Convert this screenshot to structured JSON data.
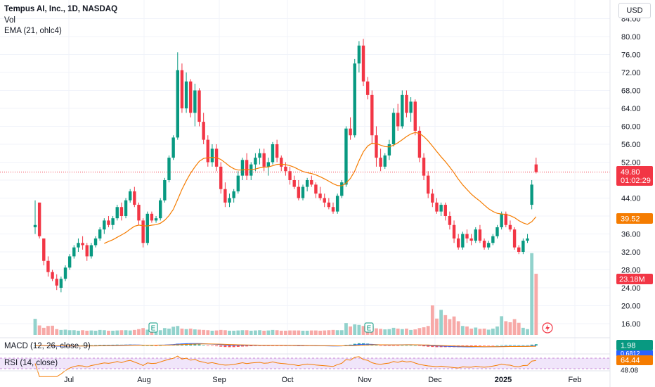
{
  "header": {
    "title": "Tempus AI, Inc., 1D, NASDAQ",
    "vol_label": "Vol",
    "ema_label": "EMA (21, ohlc4)",
    "currency": "USD"
  },
  "indicators": {
    "macd_label": "MACD (12, 26, close, 9)",
    "rsi_label": "RSI (14, close)",
    "macd_badges": [
      "1.98",
      "0.6812"
    ],
    "rsi_badges": [
      "64.44",
      "48.08"
    ]
  },
  "price_badges": {
    "last": "49.80",
    "countdown": "01:02:29",
    "ema": "39.52",
    "volume": "23.18M"
  },
  "colors": {
    "up": "#089981",
    "down": "#f23645",
    "up_vol": "#92d2cc",
    "down_vol": "#f7a9a7",
    "ema": "#f57c00",
    "macd_line": "#2962ff",
    "rsi_line": "#f57c00",
    "rsi_band": "#f0e5fa"
  },
  "chart_data": {
    "type": "candlestick",
    "title": "Tempus AI, Inc., 1D, NASDAQ",
    "x_ticks": [
      "Jul",
      "Aug",
      "Sep",
      "Oct",
      "Nov",
      "Dec",
      "2025",
      "Feb"
    ],
    "y_ticks": [
      "16.00",
      "20.00",
      "24.00",
      "28.00",
      "32.00",
      "36.00",
      "40.00",
      "44.00",
      "48.00",
      "52.00",
      "56.00",
      "60.00",
      "64.00",
      "68.00",
      "72.00",
      "76.00",
      "80.00",
      "84.00"
    ],
    "ylim": [
      15,
      85
    ],
    "earnings_markers": [
      "E",
      "E"
    ],
    "series": [
      {
        "name": "Price",
        "ohlc": [
          [
            37.5,
            43.5,
            36.0,
            38.0
          ],
          [
            43.0,
            43.0,
            35.0,
            35.5
          ],
          [
            35.0,
            35.0,
            29.0,
            30.0
          ],
          [
            30.0,
            31.0,
            26.5,
            27.5
          ],
          [
            27.5,
            28.0,
            25.5,
            26.0
          ],
          [
            26.0,
            27.0,
            23.5,
            24.5
          ],
          [
            24.0,
            26.5,
            23.0,
            26.0
          ],
          [
            26.0,
            29.0,
            25.5,
            28.5
          ],
          [
            28.5,
            31.5,
            28.0,
            31.0
          ],
          [
            31.0,
            33.5,
            30.5,
            33.0
          ],
          [
            33.0,
            35.0,
            32.0,
            34.0
          ],
          [
            34.0,
            35.5,
            32.5,
            33.5
          ],
          [
            33.5,
            34.0,
            30.0,
            31.0
          ],
          [
            31.0,
            34.0,
            30.5,
            33.5
          ],
          [
            33.5,
            35.5,
            33.0,
            35.0
          ],
          [
            35.0,
            37.5,
            34.5,
            37.0
          ],
          [
            37.0,
            39.5,
            36.0,
            39.0
          ],
          [
            39.0,
            40.0,
            37.5,
            38.0
          ],
          [
            38.0,
            40.0,
            37.0,
            39.5
          ],
          [
            39.5,
            42.5,
            39.0,
            42.0
          ],
          [
            42.0,
            43.0,
            39.0,
            40.0
          ],
          [
            40.0,
            44.0,
            39.5,
            43.5
          ],
          [
            43.5,
            46.0,
            43.0,
            45.5
          ],
          [
            45.5,
            46.5,
            42.0,
            42.5
          ],
          [
            42.5,
            43.0,
            38.0,
            39.0
          ],
          [
            39.0,
            39.5,
            33.0,
            34.0
          ],
          [
            34.0,
            41.0,
            33.5,
            40.5
          ],
          [
            40.5,
            41.0,
            38.5,
            39.0
          ],
          [
            39.0,
            40.0,
            38.5,
            39.5
          ],
          [
            39.5,
            44.0,
            39.0,
            43.5
          ],
          [
            43.5,
            48.5,
            43.0,
            48.0
          ],
          [
            48.0,
            53.5,
            47.5,
            53.0
          ],
          [
            53.0,
            58.0,
            52.5,
            57.5
          ],
          [
            57.5,
            76.5,
            57.0,
            72.5
          ],
          [
            72.5,
            74.0,
            63.0,
            64.0
          ],
          [
            64.0,
            72.0,
            63.0,
            70.0
          ],
          [
            70.0,
            70.5,
            62.0,
            63.0
          ],
          [
            63.0,
            69.5,
            60.0,
            68.0
          ],
          [
            68.0,
            68.5,
            60.0,
            61.0
          ],
          [
            61.0,
            63.0,
            56.0,
            57.0
          ],
          [
            57.0,
            58.0,
            51.0,
            52.0
          ],
          [
            52.0,
            56.0,
            51.0,
            55.0
          ],
          [
            55.0,
            56.0,
            50.0,
            51.0
          ],
          [
            51.0,
            52.0,
            45.0,
            46.0
          ],
          [
            46.0,
            47.5,
            42.0,
            43.0
          ],
          [
            43.0,
            45.0,
            42.0,
            44.0
          ],
          [
            44.0,
            46.0,
            43.0,
            45.5
          ],
          [
            45.5,
            50.0,
            45.0,
            49.0
          ],
          [
            49.0,
            53.0,
            48.0,
            52.5
          ],
          [
            52.5,
            54.0,
            48.0,
            49.0
          ],
          [
            49.0,
            52.0,
            48.0,
            51.5
          ],
          [
            51.5,
            54.0,
            50.0,
            53.0
          ],
          [
            53.0,
            55.0,
            51.5,
            54.0
          ],
          [
            54.0,
            55.0,
            50.0,
            51.0
          ],
          [
            51.0,
            53.0,
            49.0,
            52.0
          ],
          [
            52.0,
            56.5,
            51.5,
            56.0
          ],
          [
            56.0,
            57.0,
            52.0,
            53.0
          ],
          [
            53.0,
            53.5,
            50.0,
            51.0
          ],
          [
            51.0,
            52.0,
            49.0,
            50.0
          ],
          [
            50.0,
            51.0,
            47.0,
            48.0
          ],
          [
            48.0,
            49.0,
            46.0,
            46.5
          ],
          [
            46.5,
            48.0,
            43.5,
            44.0
          ],
          [
            44.0,
            47.0,
            43.5,
            46.5
          ],
          [
            46.5,
            48.5,
            45.5,
            48.0
          ],
          [
            48.0,
            49.0,
            46.5,
            47.0
          ],
          [
            47.0,
            47.5,
            44.0,
            45.0
          ],
          [
            45.0,
            46.5,
            43.5,
            44.0
          ],
          [
            44.0,
            45.0,
            42.0,
            43.0
          ],
          [
            43.0,
            44.0,
            41.5,
            42.0
          ],
          [
            42.0,
            43.0,
            40.5,
            41.0
          ],
          [
            41.0,
            45.0,
            40.5,
            44.5
          ],
          [
            44.5,
            48.0,
            44.0,
            47.5
          ],
          [
            47.0,
            60.0,
            46.5,
            59.5
          ],
          [
            59.5,
            62.0,
            57.0,
            58.0
          ],
          [
            58.0,
            75.0,
            57.5,
            74.0
          ],
          [
            74.0,
            79.0,
            72.0,
            78.0
          ],
          [
            78.0,
            79.5,
            69.0,
            70.0
          ],
          [
            70.0,
            71.0,
            66.0,
            67.0
          ],
          [
            67.0,
            68.0,
            56.0,
            58.0
          ],
          [
            58.0,
            60.0,
            51.0,
            53.0
          ],
          [
            53.0,
            55.0,
            50.0,
            51.0
          ],
          [
            51.0,
            54.0,
            50.5,
            53.5
          ],
          [
            53.5,
            57.0,
            52.5,
            56.0
          ],
          [
            56.0,
            64.0,
            55.5,
            63.0
          ],
          [
            63.0,
            65.0,
            59.0,
            60.0
          ],
          [
            60.0,
            68.0,
            59.5,
            67.0
          ],
          [
            67.0,
            68.0,
            62.0,
            63.0
          ],
          [
            63.0,
            66.5,
            61.0,
            65.5
          ],
          [
            65.5,
            66.0,
            58.0,
            59.0
          ],
          [
            59.0,
            60.0,
            52.0,
            53.0
          ],
          [
            53.0,
            54.0,
            48.0,
            49.0
          ],
          [
            49.0,
            50.0,
            44.0,
            45.0
          ],
          [
            45.0,
            46.0,
            42.0,
            43.0
          ],
          [
            43.0,
            44.0,
            40.5,
            41.0
          ],
          [
            41.0,
            43.0,
            40.0,
            42.5
          ],
          [
            42.5,
            43.0,
            39.0,
            40.0
          ],
          [
            40.0,
            41.0,
            37.0,
            38.0
          ],
          [
            38.0,
            39.0,
            34.0,
            35.0
          ],
          [
            35.0,
            36.0,
            32.5,
            33.0
          ],
          [
            33.0,
            36.5,
            32.5,
            36.0
          ],
          [
            36.0,
            37.0,
            34.0,
            35.0
          ],
          [
            35.0,
            36.0,
            33.5,
            34.5
          ],
          [
            34.5,
            37.5,
            34.0,
            37.0
          ],
          [
            37.0,
            38.0,
            34.0,
            34.5
          ],
          [
            34.5,
            35.0,
            32.5,
            33.0
          ],
          [
            33.0,
            34.5,
            32.5,
            34.0
          ],
          [
            34.0,
            36.0,
            33.5,
            35.5
          ],
          [
            35.5,
            38.0,
            35.0,
            37.5
          ],
          [
            37.5,
            41.0,
            37.0,
            40.5
          ],
          [
            40.5,
            41.0,
            37.5,
            38.0
          ],
          [
            38.0,
            39.0,
            36.5,
            37.0
          ],
          [
            37.0,
            37.5,
            32.5,
            33.0
          ],
          [
            33.0,
            33.5,
            31.5,
            32.0
          ],
          [
            32.0,
            35.0,
            31.5,
            34.5
          ],
          [
            34.5,
            36.0,
            34.0,
            35.0
          ],
          [
            42.5,
            48.0,
            41.5,
            47.0
          ],
          [
            51.5,
            53.0,
            49.5,
            49.8
          ]
        ]
      },
      {
        "name": "EMA (21, ohlc4)",
        "values": [
          null,
          null,
          null,
          null,
          null,
          null,
          null,
          null,
          null,
          null,
          null,
          null,
          null,
          null,
          null,
          null,
          null,
          null,
          null,
          null,
          null,
          null,
          null,
          null,
          null,
          null,
          null,
          null,
          null,
          null,
          null,
          null,
          null,
          null,
          null,
          null,
          null,
          null,
          null,
          null,
          null,
          null,
          null,
          null,
          null,
          null,
          null,
          null,
          null,
          null,
          null,
          null,
          null,
          null,
          null,
          null,
          null,
          null,
          null,
          null,
          null,
          null,
          null,
          null,
          null,
          null,
          null,
          null,
          null,
          null,
          null,
          null,
          null,
          null,
          null,
          null,
          null,
          null,
          null,
          null,
          null,
          null,
          null,
          null,
          null,
          null,
          null,
          null,
          null,
          null,
          null,
          null,
          null,
          null,
          null,
          null,
          null,
          null,
          null,
          null,
          null,
          null,
          null,
          null,
          null,
          null,
          null,
          null,
          null,
          null,
          null,
          null,
          null,
          null,
          null
        ]
      }
    ],
    "volume": [
      [
        6.1,
        1
      ],
      [
        3.6,
        0
      ],
      [
        2.7,
        0
      ],
      [
        3.4,
        0
      ],
      [
        3.5,
        0
      ],
      [
        2.2,
        0
      ],
      [
        1.9,
        1
      ],
      [
        2.0,
        1
      ],
      [
        1.8,
        1
      ],
      [
        1.8,
        1
      ],
      [
        1.6,
        1
      ],
      [
        1.8,
        0
      ],
      [
        1.6,
        0
      ],
      [
        1.7,
        1
      ],
      [
        1.6,
        1
      ],
      [
        1.9,
        1
      ],
      [
        1.8,
        1
      ],
      [
        1.6,
        0
      ],
      [
        1.6,
        1
      ],
      [
        1.7,
        1
      ],
      [
        1.8,
        0
      ],
      [
        1.8,
        1
      ],
      [
        1.7,
        1
      ],
      [
        1.9,
        0
      ],
      [
        2.2,
        0
      ],
      [
        2.6,
        0
      ],
      [
        2.0,
        1
      ],
      [
        1.8,
        0
      ],
      [
        1.6,
        1
      ],
      [
        1.8,
        1
      ],
      [
        2.6,
        1
      ],
      [
        2.4,
        1
      ],
      [
        3.1,
        1
      ],
      [
        3.4,
        1
      ],
      [
        2.4,
        0
      ],
      [
        2.2,
        1
      ],
      [
        2.4,
        0
      ],
      [
        2.1,
        1
      ],
      [
        2.0,
        0
      ],
      [
        1.9,
        0
      ],
      [
        1.8,
        0
      ],
      [
        1.6,
        1
      ],
      [
        1.7,
        0
      ],
      [
        1.9,
        0
      ],
      [
        1.8,
        0
      ],
      [
        1.6,
        1
      ],
      [
        1.6,
        1
      ],
      [
        1.7,
        1
      ],
      [
        1.8,
        1
      ],
      [
        1.8,
        0
      ],
      [
        1.6,
        1
      ],
      [
        1.7,
        1
      ],
      [
        1.8,
        1
      ],
      [
        1.6,
        0
      ],
      [
        1.7,
        1
      ],
      [
        1.9,
        1
      ],
      [
        1.8,
        0
      ],
      [
        1.6,
        0
      ],
      [
        1.6,
        0
      ],
      [
        1.7,
        0
      ],
      [
        1.7,
        0
      ],
      [
        1.7,
        0
      ],
      [
        1.6,
        1
      ],
      [
        1.6,
        1
      ],
      [
        1.7,
        0
      ],
      [
        1.7,
        0
      ],
      [
        1.6,
        0
      ],
      [
        1.7,
        0
      ],
      [
        1.8,
        0
      ],
      [
        1.9,
        0
      ],
      [
        1.8,
        1
      ],
      [
        1.8,
        1
      ],
      [
        4.5,
        1
      ],
      [
        3.2,
        0
      ],
      [
        4.0,
        1
      ],
      [
        3.8,
        1
      ],
      [
        3.4,
        0
      ],
      [
        2.6,
        0
      ],
      [
        3.3,
        0
      ],
      [
        2.5,
        0
      ],
      [
        2.3,
        0
      ],
      [
        2.1,
        1
      ],
      [
        2.2,
        1
      ],
      [
        2.7,
        1
      ],
      [
        2.4,
        0
      ],
      [
        2.2,
        1
      ],
      [
        2.4,
        0
      ],
      [
        1.9,
        1
      ],
      [
        2.1,
        0
      ],
      [
        2.6,
        0
      ],
      [
        2.9,
        0
      ],
      [
        3.4,
        0
      ],
      [
        11.2,
        0
      ],
      [
        6.2,
        0
      ],
      [
        9.5,
        1
      ],
      [
        7.5,
        0
      ],
      [
        6.0,
        0
      ],
      [
        7.0,
        0
      ],
      [
        5.2,
        0
      ],
      [
        3.4,
        1
      ],
      [
        3.2,
        0
      ],
      [
        2.4,
        0
      ],
      [
        2.8,
        1
      ],
      [
        2.3,
        0
      ],
      [
        2.4,
        0
      ],
      [
        2.0,
        1
      ],
      [
        2.4,
        1
      ],
      [
        3.2,
        1
      ],
      [
        7.1,
        1
      ],
      [
        5.2,
        0
      ],
      [
        4.8,
        0
      ],
      [
        6.0,
        0
      ],
      [
        4.6,
        0
      ],
      [
        2.7,
        1
      ],
      [
        2.2,
        1
      ],
      [
        31.0,
        1
      ],
      [
        23.18,
        0
      ]
    ],
    "volume_max": 32
  }
}
